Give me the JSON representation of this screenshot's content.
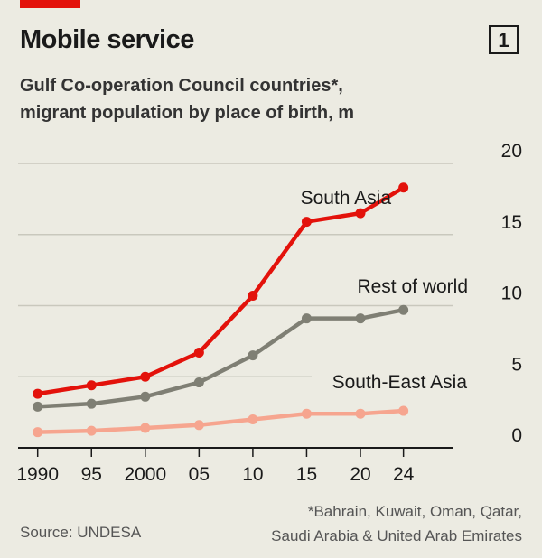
{
  "title": "Mobile service",
  "chart_number": "1",
  "subtitle_lines": [
    "Gulf Co-operation Council countries*,",
    "migrant population by place of birth, m"
  ],
  "source": "Source: UNDESA",
  "footnote_lines": [
    "*Bahrain, Kuwait, Oman, Qatar,",
    "Saudi Arabia & United Arab Emirates"
  ],
  "chart_data": {
    "type": "line",
    "x": [
      1990,
      1995,
      2000,
      2005,
      2010,
      2015,
      2020,
      2024
    ],
    "x_tick_labels": [
      "1990",
      "95",
      "2000",
      "05",
      "10",
      "15",
      "20",
      "24"
    ],
    "ylim": [
      0,
      20
    ],
    "y_ticks": [
      0,
      5,
      10,
      15,
      20
    ],
    "y_tick_labels": [
      "0",
      "5",
      "10",
      "15",
      "20"
    ],
    "y_axis_side": "right",
    "grid": true,
    "series": [
      {
        "name": "South Asia",
        "color": "#e3120b",
        "values": [
          3.8,
          4.4,
          5.0,
          6.7,
          10.7,
          15.9,
          16.5,
          18.3
        ]
      },
      {
        "name": "Rest of world",
        "color": "#7f7f74",
        "values": [
          2.9,
          3.1,
          3.6,
          4.6,
          6.5,
          9.1,
          9.1,
          9.7
        ]
      },
      {
        "name": "South-East Asia",
        "color": "#f6a58f",
        "values": [
          1.1,
          1.2,
          1.4,
          1.6,
          2.0,
          2.4,
          2.4,
          2.6
        ]
      }
    ]
  }
}
